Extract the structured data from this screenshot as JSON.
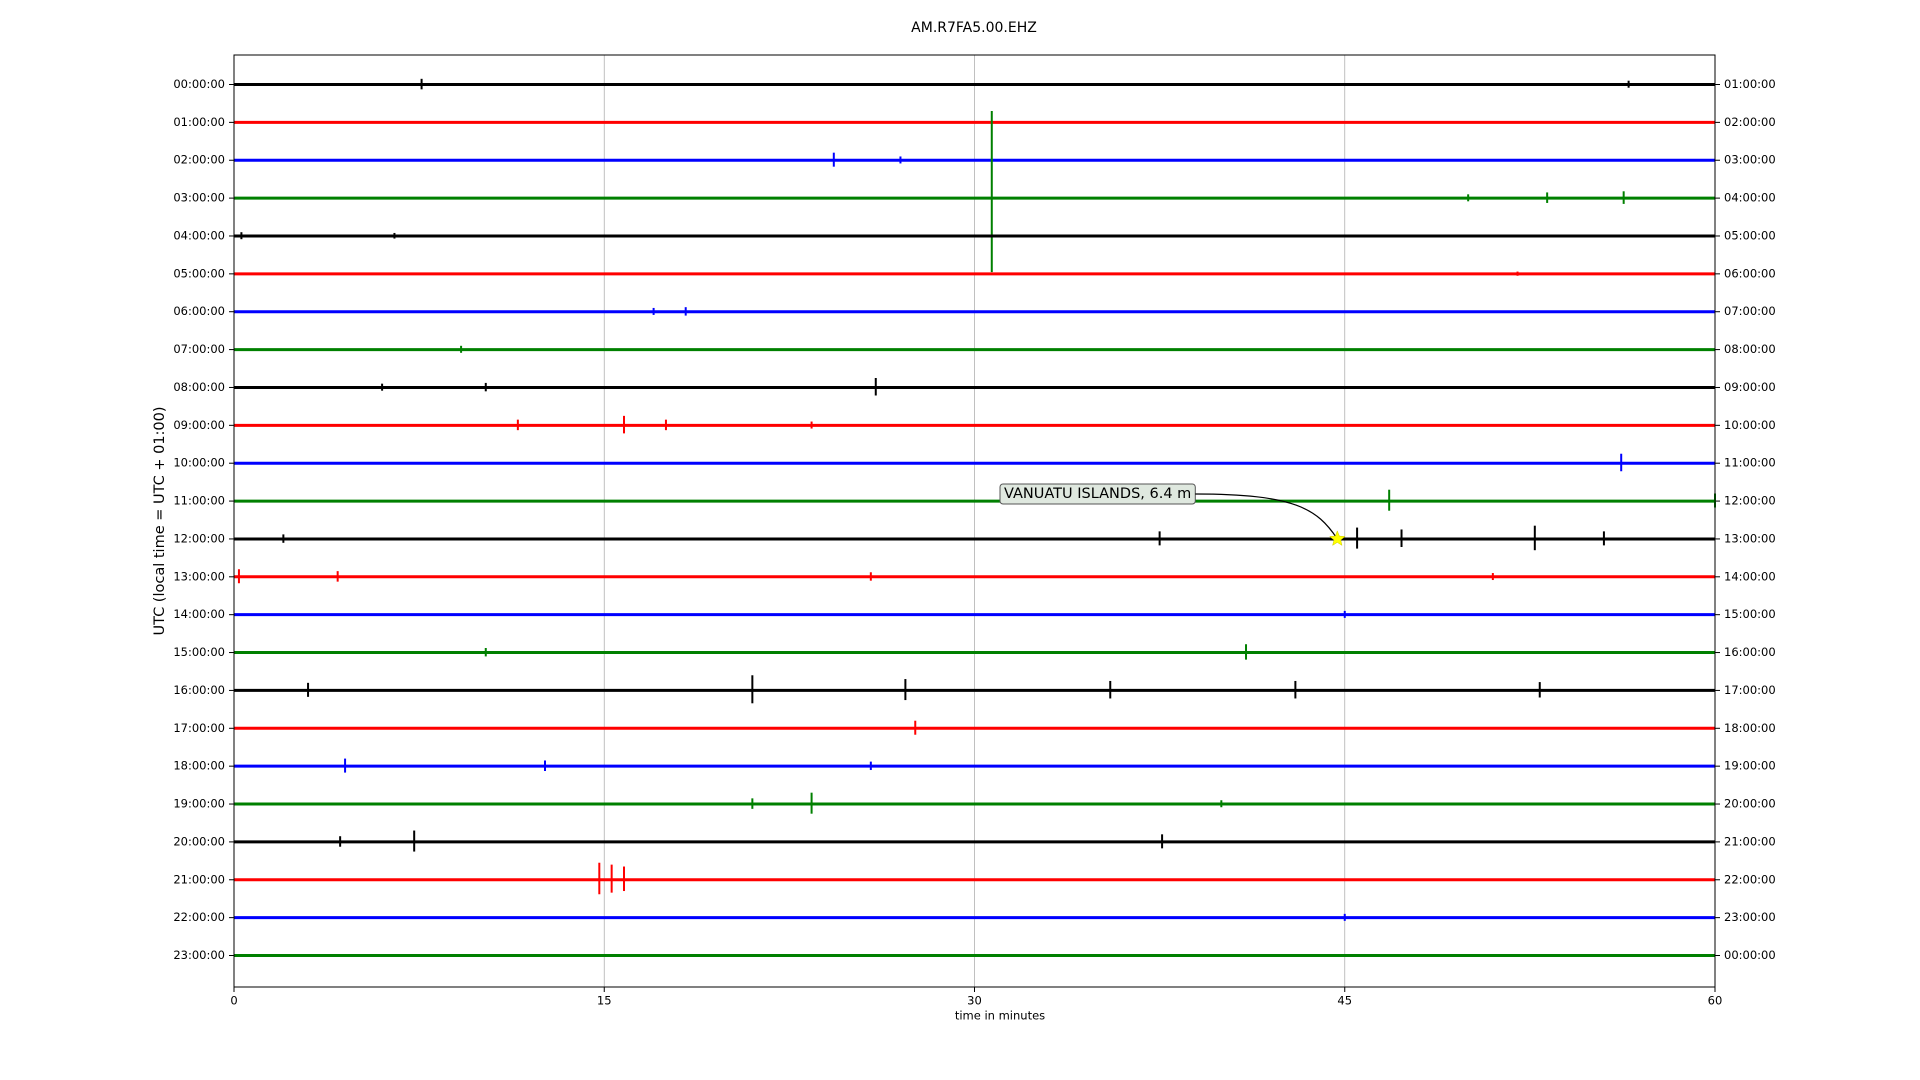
{
  "chart_data": {
    "type": "helicorder",
    "title": "AM.R7FA5.00.EHZ",
    "x_label": "time in minutes",
    "y_label": "UTC (local time = UTC + 01:00)",
    "xlim": [
      0,
      60
    ],
    "xticks": [
      0,
      15,
      30,
      45,
      60
    ],
    "grid": true,
    "categories": [
      "00:00:00",
      "01:00:00",
      "02:00:00",
      "03:00:00",
      "04:00:00",
      "05:00:00",
      "06:00:00",
      "07:00:00",
      "08:00:00",
      "09:00:00",
      "10:00:00",
      "11:00:00",
      "12:00:00",
      "13:00:00",
      "14:00:00",
      "15:00:00",
      "16:00:00",
      "17:00:00",
      "18:00:00",
      "19:00:00",
      "20:00:00",
      "21:00:00",
      "22:00:00",
      "23:00:00"
    ],
    "right_labels": [
      "01:00:00",
      "02:00:00",
      "03:00:00",
      "04:00:00",
      "05:00:00",
      "06:00:00",
      "07:00:00",
      "08:00:00",
      "09:00:00",
      "10:00:00",
      "11:00:00",
      "12:00:00",
      "13:00:00",
      "14:00:00",
      "15:00:00",
      "16:00:00",
      "17:00:00",
      "18:00:00",
      "19:00:00",
      "20:00:00",
      "21:00:00",
      "22:00:00",
      "23:00:00",
      "00:00:00"
    ],
    "series": [
      {
        "color": "#000000",
        "x": [
          7.6,
          56.5
        ],
        "values": [
          0.15,
          0.1
        ]
      },
      {
        "color": "#ff0000",
        "x": [],
        "values": []
      },
      {
        "color": "#0000ff",
        "x": [
          24.3,
          27
        ],
        "values": [
          0.2,
          0.1
        ]
      },
      {
        "color": "#008000",
        "x": [
          30.7,
          50,
          53.2,
          56.3
        ],
        "values": [
          2.3,
          0.1,
          0.15,
          0.18
        ]
      },
      {
        "color": "#000000",
        "x": [
          0.3,
          6.5
        ],
        "values": [
          0.1,
          0.08
        ]
      },
      {
        "color": "#ff0000",
        "x": [
          52
        ],
        "values": [
          0.06
        ]
      },
      {
        "color": "#0000ff",
        "x": [
          17,
          18.3
        ],
        "values": [
          0.1,
          0.12
        ]
      },
      {
        "color": "#008000",
        "x": [
          9.2
        ],
        "values": [
          0.1
        ]
      },
      {
        "color": "#000000",
        "x": [
          6,
          10.2,
          26
        ],
        "values": [
          0.1,
          0.12,
          0.25
        ]
      },
      {
        "color": "#ff0000",
        "x": [
          11.5,
          15.8,
          17.5,
          23.4
        ],
        "values": [
          0.15,
          0.25,
          0.15,
          0.1
        ]
      },
      {
        "color": "#0000ff",
        "x": [
          56.2
        ],
        "values": [
          0.25
        ]
      },
      {
        "color": "#008000",
        "x": [
          46.8,
          60
        ],
        "values": [
          0.3,
          0.2
        ]
      },
      {
        "color": "#000000",
        "x": [
          2,
          37.5,
          45.5,
          47.3,
          52.7,
          55.5
        ],
        "values": [
          0.12,
          0.2,
          0.3,
          0.25,
          0.35,
          0.2
        ]
      },
      {
        "color": "#ff0000",
        "x": [
          0.2,
          4.2,
          25.8,
          51
        ],
        "values": [
          0.2,
          0.15,
          0.12,
          0.1
        ]
      },
      {
        "color": "#0000ff",
        "x": [
          45
        ],
        "values": [
          0.1
        ]
      },
      {
        "color": "#008000",
        "x": [
          10.2,
          41
        ],
        "values": [
          0.12,
          0.22
        ]
      },
      {
        "color": "#000000",
        "x": [
          3,
          21,
          27.2,
          35.5,
          43,
          52.9
        ],
        "values": [
          0.2,
          0.4,
          0.3,
          0.25,
          0.25,
          0.22
        ]
      },
      {
        "color": "#ff0000",
        "x": [
          27.6
        ],
        "values": [
          0.2
        ]
      },
      {
        "color": "#0000ff",
        "x": [
          4.5,
          12.6,
          25.8
        ],
        "values": [
          0.2,
          0.15,
          0.12
        ]
      },
      {
        "color": "#008000",
        "x": [
          21,
          23.4,
          40
        ],
        "values": [
          0.15,
          0.3,
          0.1
        ]
      },
      {
        "color": "#000000",
        "x": [
          4.3,
          7.3,
          37.6
        ],
        "values": [
          0.15,
          0.3,
          0.2
        ]
      },
      {
        "color": "#ff0000",
        "x": [
          14.8,
          15.3,
          15.8
        ],
        "values": [
          0.45,
          0.4,
          0.35
        ]
      },
      {
        "color": "#0000ff",
        "x": [
          45
        ],
        "values": [
          0.1
        ]
      },
      {
        "color": "#008000",
        "x": [],
        "values": []
      }
    ],
    "annotations": [
      {
        "text": "VANUATU ISLANDS, 6.4 m",
        "x": 44.7,
        "row": 12
      }
    ]
  }
}
